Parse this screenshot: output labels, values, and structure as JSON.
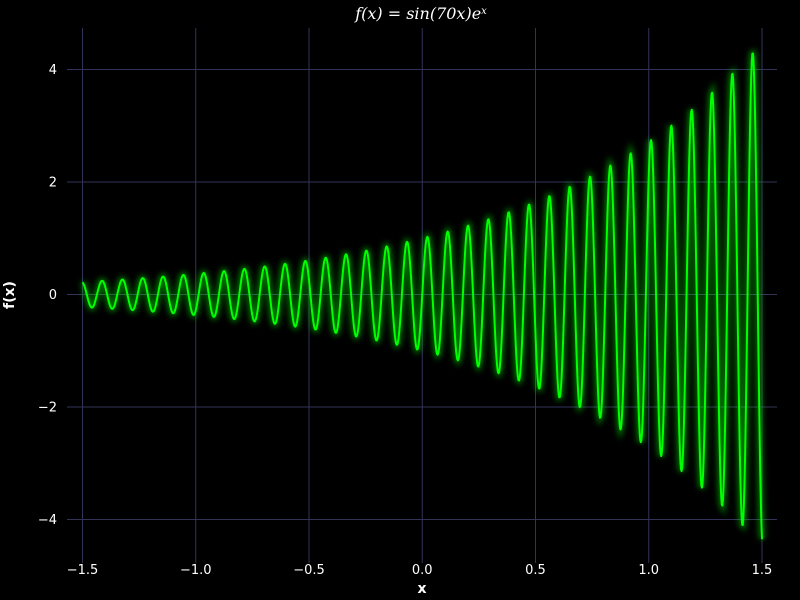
{
  "chart_data": {
    "type": "line",
    "title_base": "f(x) = sin(70x)e",
    "title_superscript": "x",
    "xlabel": "x",
    "ylabel": "f(x)",
    "xlim": [
      -1.5,
      1.5
    ],
    "ylim": [
      -4.4848,
      4.4848
    ],
    "x_ticks": [
      -1.5,
      -1.0,
      -0.5,
      0.0,
      0.5,
      1.0,
      1.5
    ],
    "x_tick_labels": [
      "−1.5",
      "−1.0",
      "−0.5",
      "0.0",
      "0.5",
      "1.0",
      "1.5"
    ],
    "y_ticks": [
      -4,
      -2,
      0,
      2,
      4
    ],
    "y_tick_labels": [
      "−4",
      "−2",
      "0",
      "2",
      "4"
    ],
    "grid": true,
    "series": [
      {
        "function": "sin(70x)*exp(x)",
        "x_start": -1.5,
        "x_end": 1.5,
        "samples": 1200
      }
    ],
    "colors": {
      "background": "#000000",
      "grid": "#33335a",
      "line": "#00ff00",
      "glow": "#00ff00",
      "text": "#ffffff"
    }
  }
}
